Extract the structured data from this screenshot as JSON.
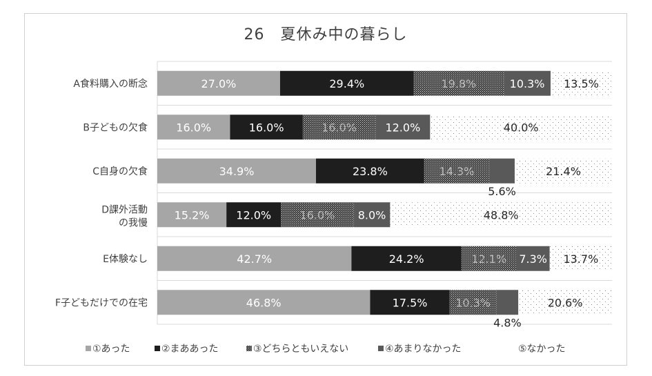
{
  "chart_data": {
    "type": "bar",
    "orientation": "horizontal",
    "stacked": "percent",
    "title": "26　夏休み中の暮らし",
    "categories": [
      "A食料購入の断念",
      "B子どもの欠食",
      "C自身の欠食",
      "D課外活動\nの我慢",
      "E体験なし",
      "F子どもだけでの在宅"
    ],
    "series": [
      {
        "name": "①あった",
        "values": [
          27.0,
          16.0,
          34.9,
          15.2,
          42.7,
          46.8
        ],
        "color": "#a6a6a6"
      },
      {
        "name": "②まああった",
        "values": [
          29.4,
          16.0,
          23.8,
          12.0,
          24.2,
          17.5
        ],
        "color": "#1e1e1e"
      },
      {
        "name": "③どちらともいえない",
        "values": [
          19.8,
          16.0,
          14.3,
          16.0,
          12.1,
          10.3
        ],
        "color": "#333333"
      },
      {
        "name": "④あまりなかった",
        "values": [
          10.3,
          12.0,
          5.6,
          8.0,
          7.3,
          4.8
        ],
        "color": "#595959"
      },
      {
        "name": "⑤なかった",
        "values": [
          13.5,
          40.0,
          21.4,
          48.8,
          13.7,
          20.6
        ],
        "color": "#ffffff"
      }
    ],
    "data_labels": [
      [
        "27.0%",
        "29.4%",
        "19.8%",
        "10.3%",
        "13.5%"
      ],
      [
        "16.0%",
        "16.0%",
        "16.0%",
        "12.0%",
        "40.0%"
      ],
      [
        "34.9%",
        "23.8%",
        "14.3%",
        "5.6%",
        "21.4%"
      ],
      [
        "15.2%",
        "12.0%",
        "16.0%",
        "8.0%",
        "48.8%"
      ],
      [
        "42.7%",
        "24.2%",
        "12.1%",
        "7.3%",
        "13.7%"
      ],
      [
        "46.8%",
        "17.5%",
        "10.3%",
        "4.8%",
        "20.6%"
      ]
    ],
    "xlim": [
      0,
      100
    ],
    "grid": true,
    "legend_position": "bottom"
  }
}
